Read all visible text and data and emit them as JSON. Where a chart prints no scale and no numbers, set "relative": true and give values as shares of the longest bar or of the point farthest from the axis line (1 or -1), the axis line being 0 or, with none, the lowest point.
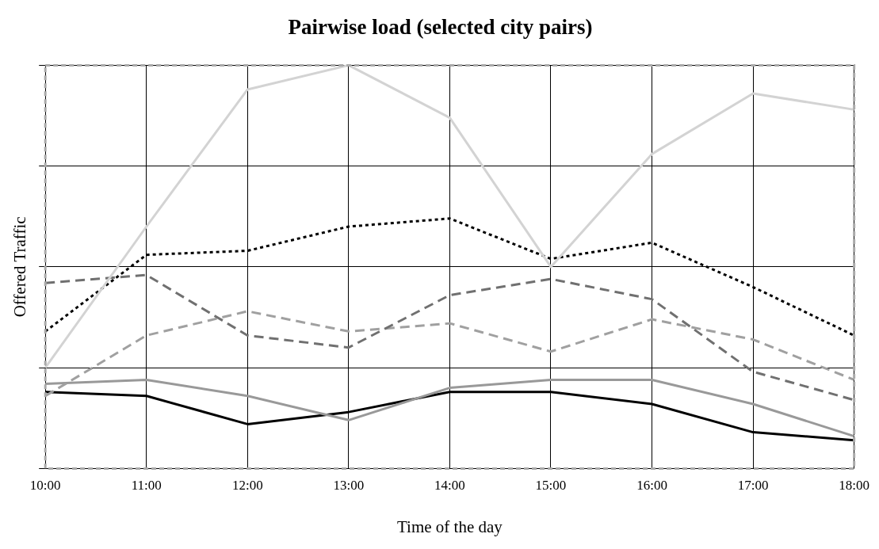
{
  "chart_data": {
    "type": "line",
    "title": "Pairwise load (selected city pairs)",
    "xlabel": "Time of the day",
    "ylabel": "Offered Traffic",
    "relative": true,
    "grid": true,
    "legend": false,
    "marker": "none",
    "categories": [
      "10:00",
      "11:00",
      "12:00",
      "13:00",
      "14:00",
      "15:00",
      "16:00",
      "17:00",
      "18:00"
    ],
    "series": [
      {
        "color": "#d3d3d3",
        "line_style": "solid",
        "values": [
          0.25,
          0.6,
          0.94,
          1,
          0.87,
          0.5,
          0.78,
          0.93,
          0.89
        ]
      },
      {
        "color": "#000000",
        "line_style": "dotted",
        "values": [
          0.34,
          0.53,
          0.54,
          0.6,
          0.62,
          0.52,
          0.56,
          0.45,
          0.33
        ]
      },
      {
        "color": "#707070",
        "line_style": "dashed",
        "values": [
          0.46,
          0.48,
          0.33,
          0.3,
          0.43,
          0.47,
          0.42,
          0.24,
          0.17
        ]
      },
      {
        "color": "#a0a0a0",
        "line_style": "dashed",
        "values": [
          0.18,
          0.33,
          0.39,
          0.34,
          0.36,
          0.29,
          0.37,
          0.32,
          0.22
        ]
      },
      {
        "color": "#999999",
        "line_style": "solid",
        "values": [
          0.21,
          0.22,
          0.18,
          0.12,
          0.2,
          0.22,
          0.22,
          0.16,
          0.08
        ]
      },
      {
        "color": "#000000",
        "line_style": "solid",
        "values": [
          0.19,
          0.18,
          0.11,
          0.14,
          0.19,
          0.19,
          0.16,
          0.09,
          0.07
        ]
      }
    ]
  }
}
